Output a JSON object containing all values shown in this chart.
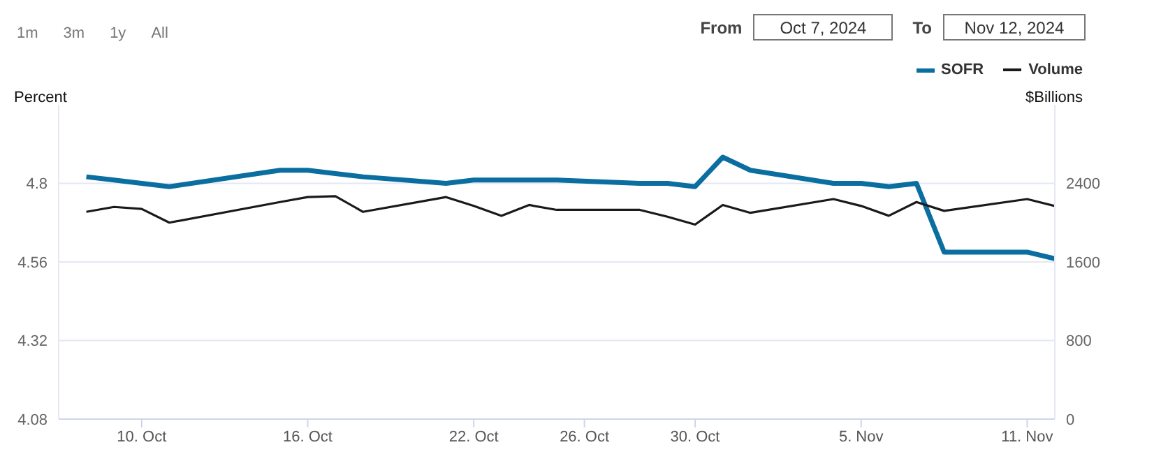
{
  "chart_data": {
    "type": "line",
    "annotations": [
      "1m",
      "3m",
      "1y",
      "All",
      "From",
      "Oct 7, 2024",
      "To",
      "Nov 12, 2024"
    ],
    "ylabel": "Percent",
    "y2label": "$Billions",
    "x": [
      "2024-10-08",
      "2024-10-09",
      "2024-10-10",
      "2024-10-11",
      "2024-10-15",
      "2024-10-16",
      "2024-10-17",
      "2024-10-18",
      "2024-10-21",
      "2024-10-22",
      "2024-10-23",
      "2024-10-24",
      "2024-10-25",
      "2024-10-28",
      "2024-10-29",
      "2024-10-30",
      "2024-10-31",
      "2024-11-01",
      "2024-11-04",
      "2024-11-05",
      "2024-11-06",
      "2024-11-07",
      "2024-11-08",
      "2024-11-11",
      "2024-11-12"
    ],
    "series": [
      {
        "name": "SOFR",
        "color": "#0a6ea0",
        "values": [
          4.82,
          4.81,
          4.8,
          4.79,
          4.84,
          4.84,
          4.83,
          4.82,
          4.8,
          4.81,
          4.81,
          4.81,
          4.81,
          4.8,
          4.8,
          4.79,
          4.88,
          4.84,
          4.8,
          4.8,
          4.79,
          4.8,
          4.59,
          4.59,
          4.57
        ]
      },
      {
        "name": "Volume",
        "color": "#1a1a1a",
        "axis": "y2",
        "values": [
          2110,
          2160,
          2140,
          2000,
          2210,
          2260,
          2270,
          2110,
          2260,
          2170,
          2070,
          2180,
          2130,
          2130,
          2060,
          1980,
          2180,
          2100,
          2240,
          2170,
          2070,
          2210,
          2120,
          2240,
          2170
        ]
      }
    ],
    "xlim": [
      "2024-10-07",
      "2024-11-12"
    ],
    "xticks": [
      {
        "value": "2024-10-10",
        "label": "10. Oct"
      },
      {
        "value": "2024-10-16",
        "label": "16. Oct"
      },
      {
        "value": "2024-10-22",
        "label": "22. Oct"
      },
      {
        "value": "2024-10-26",
        "label": "26. Oct"
      },
      {
        "value": "2024-10-30",
        "label": "30. Oct"
      },
      {
        "value": "2024-11-05",
        "label": "5. Nov"
      },
      {
        "value": "2024-11-11",
        "label": "11. Nov"
      }
    ],
    "ylim": [
      4.08,
      5.04
    ],
    "yticks": [
      4.08,
      4.32,
      4.56,
      4.8
    ],
    "y2lim": [
      0,
      3200
    ],
    "y2ticks": [
      0,
      800,
      1600,
      2400
    ],
    "grid": "y",
    "legend": "top right",
    "marker": "none",
    "line_style": "solid"
  }
}
